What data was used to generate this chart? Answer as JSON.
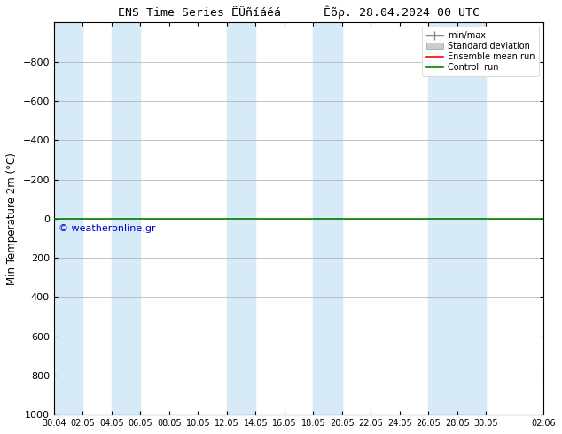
{
  "title": "ENS Time Series ËÜñíáéá      Êõρ. 28.04.2024 00 UTC",
  "ylabel": "Min Temperature 2m (°C)",
  "ylim_bottom": -1000,
  "ylim_top": 1000,
  "yticks": [
    -800,
    -600,
    -400,
    -200,
    0,
    200,
    400,
    600,
    800,
    1000
  ],
  "x_start": 0,
  "x_end": 34,
  "band_color": "#d6eaf8",
  "bg_color": "#ffffff",
  "grid_color": "#aaaaaa",
  "line_y": 0,
  "green_color": "#008000",
  "red_color": "#ff0000",
  "copyright_text": "© weatheronline.gr",
  "copyright_color": "#0000cc",
  "legend_labels": [
    "min/max",
    "Standard deviation",
    "Ensemble mean run",
    "Controll run"
  ],
  "x_tick_labels": [
    "30.04",
    "02.05",
    "04.05",
    "06.05",
    "08.05",
    "10.05",
    "12.05",
    "14.05",
    "16.05",
    "18.05",
    "20.05",
    "22.05",
    "24.05",
    "26.05",
    "28.05",
    "30.05",
    "02.06"
  ],
  "x_tick_positions": [
    0,
    2,
    4,
    6,
    8,
    10,
    12,
    14,
    16,
    18,
    20,
    22,
    24,
    26,
    28,
    30,
    34
  ],
  "band_positions": [
    0,
    4,
    8,
    12,
    16,
    20,
    22,
    24,
    26,
    32
  ],
  "band_widths": [
    2,
    2,
    2,
    2,
    2,
    2,
    2,
    2,
    4,
    2
  ]
}
